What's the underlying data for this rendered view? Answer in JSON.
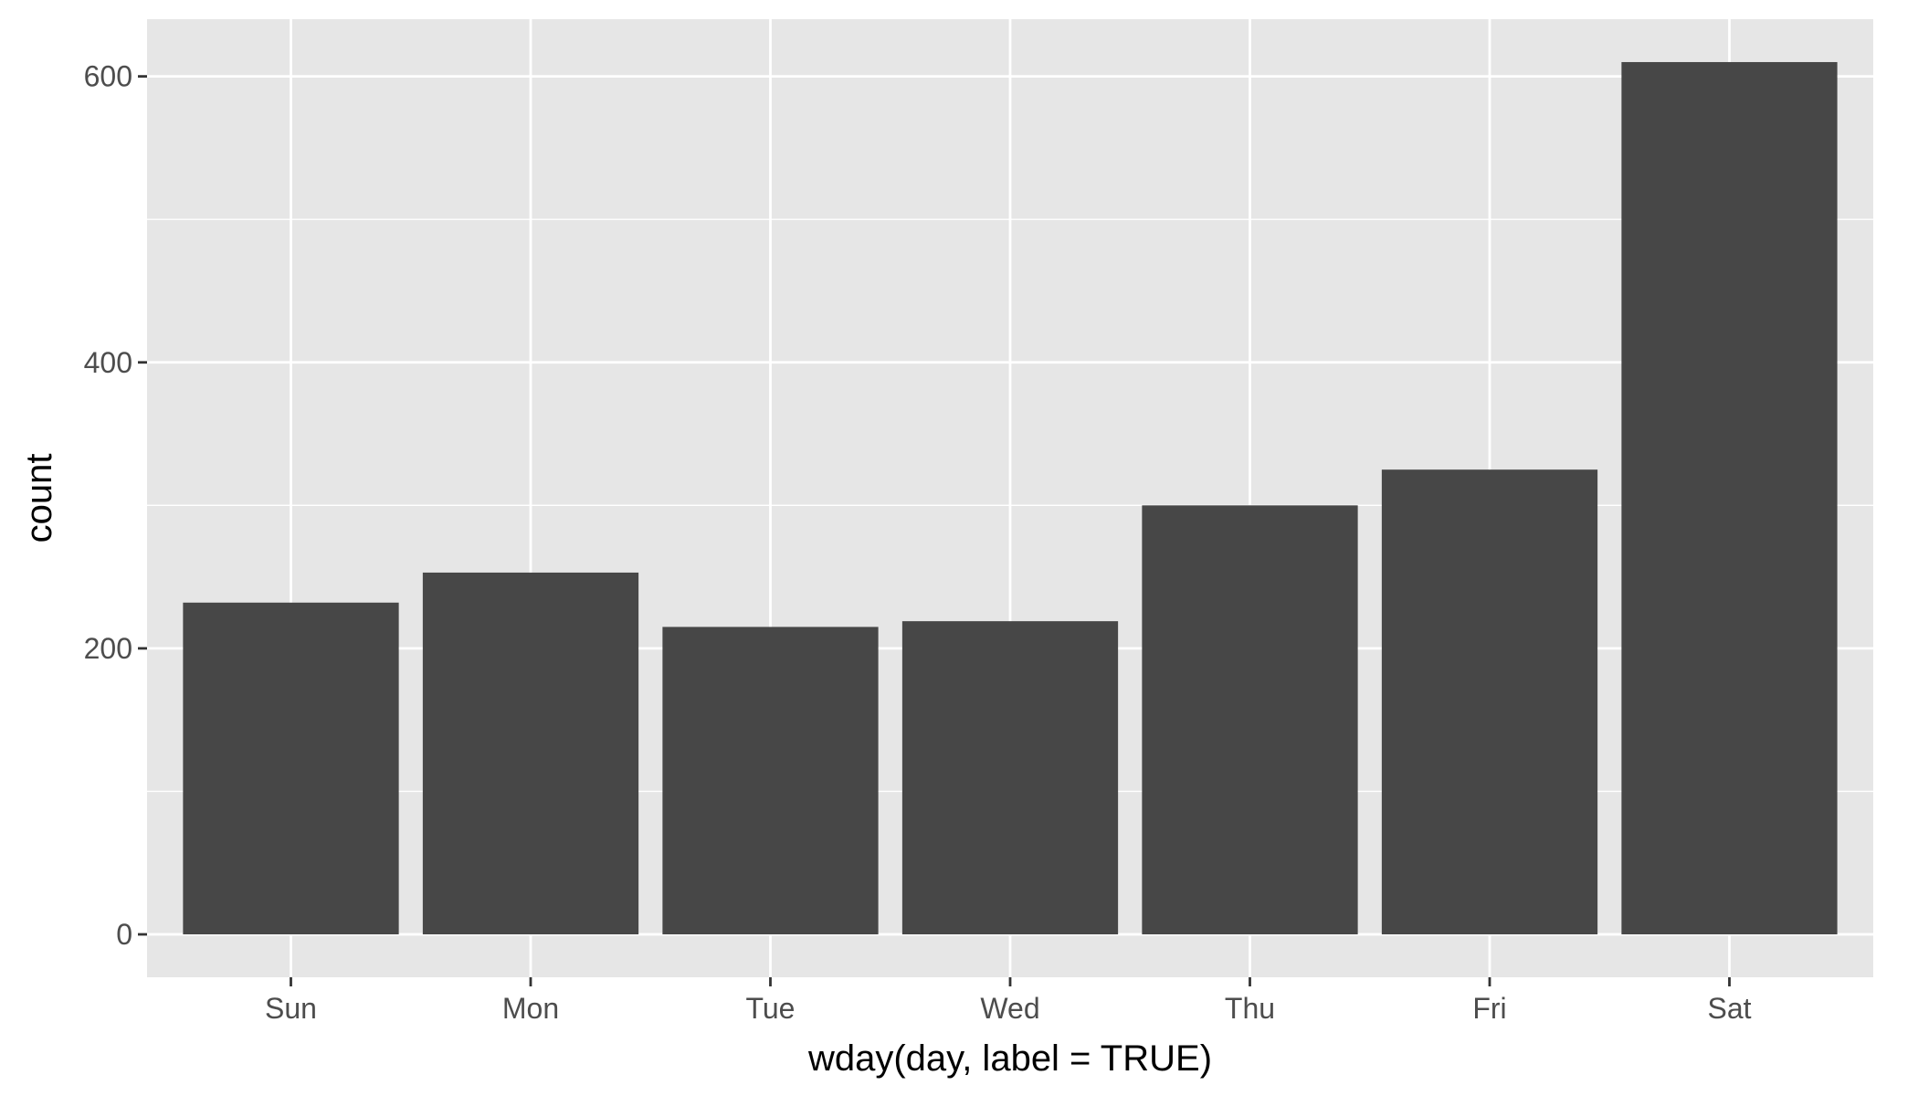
{
  "chart_data": {
    "type": "bar",
    "title": "",
    "xlabel": "wday(day, label = TRUE)",
    "ylabel": "count",
    "categories": [
      "Sun",
      "Mon",
      "Tue",
      "Wed",
      "Thu",
      "Fri",
      "Sat"
    ],
    "values": [
      232,
      253,
      215,
      219,
      300,
      325,
      610
    ],
    "ylim": [
      -30,
      640
    ],
    "yticks": [
      0,
      200,
      400,
      600
    ],
    "ytick_labels": [
      "0",
      "200",
      "400",
      "600"
    ],
    "grid": true,
    "legend": "none",
    "colors": {
      "bar": "#474747",
      "panel": "#e6e6e6",
      "grid": "#ffffff",
      "tick": "#333333",
      "tick_text": "#4d4d4d"
    }
  }
}
